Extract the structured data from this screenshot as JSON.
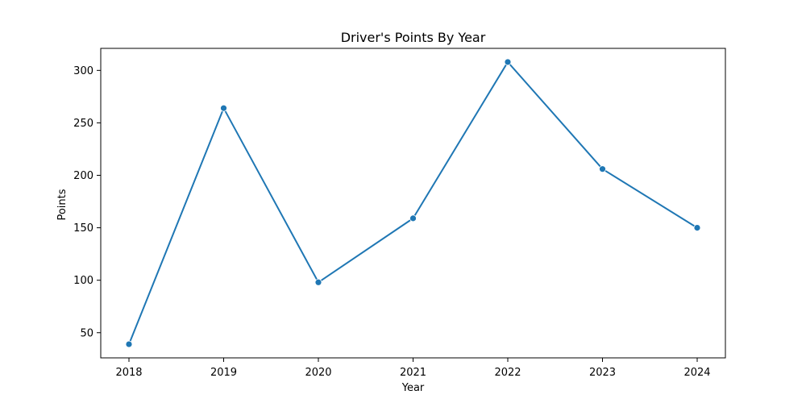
{
  "chart_data": {
    "type": "line",
    "title": "Driver's Points By Year",
    "xlabel": "Year",
    "ylabel": "Points",
    "x": [
      "2018",
      "2019",
      "2020",
      "2021",
      "2022",
      "2023",
      "2024"
    ],
    "series": [
      {
        "values": [
          39,
          264,
          98,
          159,
          308,
          206,
          150
        ]
      }
    ],
    "yticks": [
      50,
      100,
      150,
      200,
      250,
      300
    ],
    "ylim": [
      26,
      321
    ],
    "grid": false,
    "line_color": "#1f77b4",
    "marker": "circle"
  }
}
